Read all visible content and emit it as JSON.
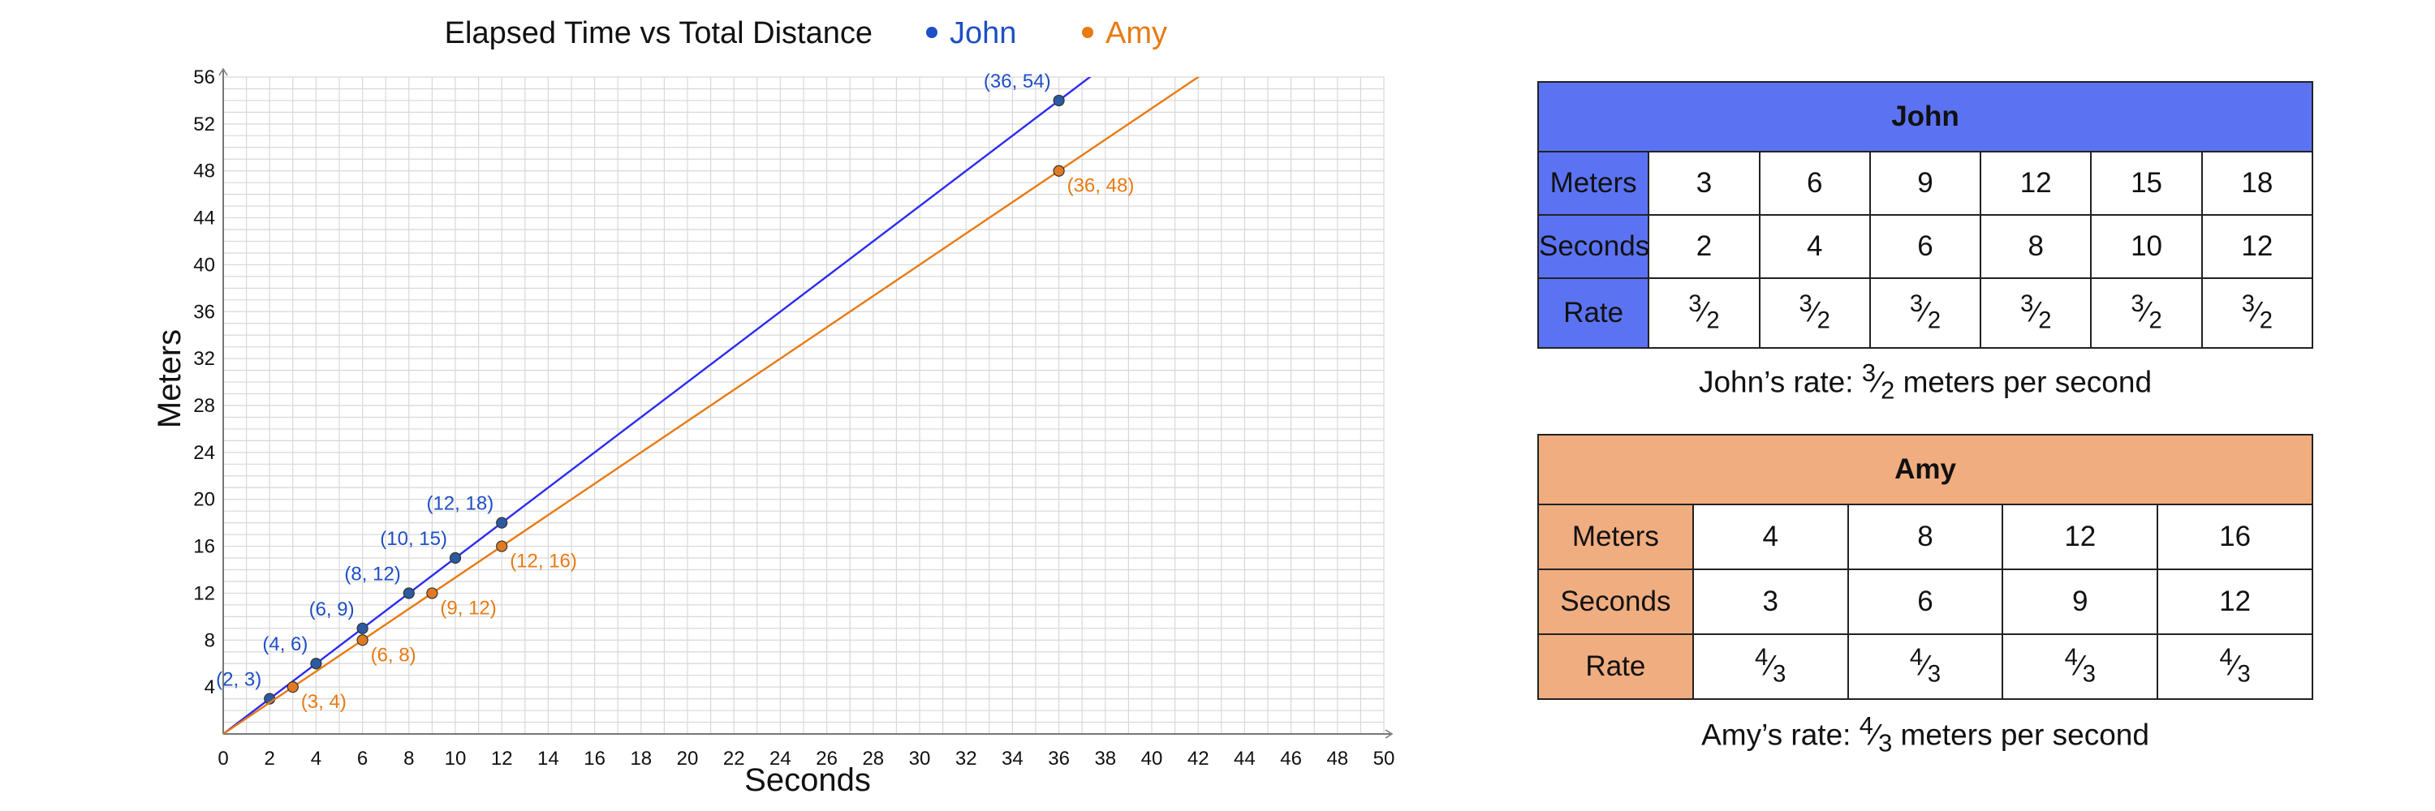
{
  "chart_data": {
    "type": "line",
    "title": "Elapsed Time vs Total Distance",
    "xlabel": "Seconds",
    "ylabel": "Meters",
    "xlim": [
      0,
      50
    ],
    "ylim": [
      0,
      56
    ],
    "x_ticks": [
      0,
      2,
      4,
      6,
      8,
      10,
      12,
      14,
      16,
      18,
      20,
      22,
      24,
      26,
      28,
      30,
      32,
      34,
      36,
      38,
      40,
      42,
      44,
      46,
      48,
      50
    ],
    "y_ticks": [
      4,
      8,
      12,
      16,
      20,
      24,
      28,
      32,
      36,
      40,
      44,
      48,
      52,
      56
    ],
    "grid": true,
    "legend_position": "top",
    "series": [
      {
        "name": "John",
        "color": "#1f4fc4",
        "line_color": "#2b2bf0",
        "slope": 1.5,
        "points": [
          [
            2,
            3
          ],
          [
            4,
            6
          ],
          [
            6,
            9
          ],
          [
            8,
            12
          ],
          [
            10,
            15
          ],
          [
            12,
            18
          ],
          [
            36,
            54
          ]
        ],
        "point_labels": [
          "(2, 3)",
          "(4, 6)",
          "(6, 9)",
          "(8, 12)",
          "(10, 15)",
          "(12, 18)",
          "(36, 54)"
        ]
      },
      {
        "name": "Amy",
        "color": "#e87a12",
        "line_color": "#e87a12",
        "slope": 1.3333333,
        "points": [
          [
            3,
            4
          ],
          [
            6,
            8
          ],
          [
            9,
            12
          ],
          [
            12,
            16
          ],
          [
            36,
            48
          ]
        ],
        "point_labels": [
          "(3, 4)",
          "(6, 8)",
          "(9, 12)",
          "(12, 16)",
          "(36, 48)"
        ]
      }
    ]
  },
  "john_table": {
    "title": "John",
    "row_labels": [
      "Meters",
      "Seconds",
      "Rate"
    ],
    "meters": [
      "3",
      "6",
      "9",
      "12",
      "15",
      "18"
    ],
    "seconds": [
      "2",
      "4",
      "6",
      "8",
      "10",
      "12"
    ],
    "rate_num": "3",
    "rate_den": "2",
    "caption_prefix": "John’s rate: ",
    "caption_suffix": " meters per second",
    "color": "#5b73f3"
  },
  "amy_table": {
    "title": "Amy",
    "row_labels": [
      "Meters",
      "Seconds",
      "Rate"
    ],
    "meters": [
      "4",
      "8",
      "12",
      "16"
    ],
    "seconds": [
      "3",
      "6",
      "9",
      "12"
    ],
    "rate_num": "4",
    "rate_den": "3",
    "caption_prefix": "Amy’s rate: ",
    "caption_suffix": " meters per second",
    "color": "#f0ad80"
  }
}
